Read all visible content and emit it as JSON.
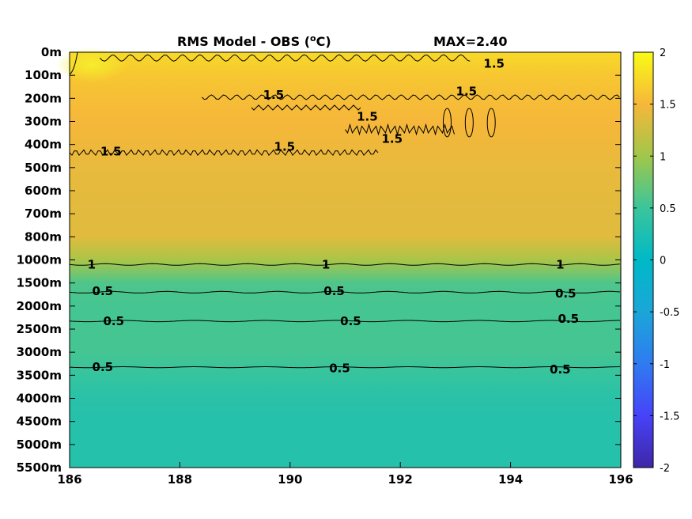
{
  "chart_data": {
    "type": "heatmap",
    "title_left": "RMS Model - OBS (",
    "title_unit_sup": "o",
    "title_unit": "C)",
    "title_right": "MAX=2.40",
    "x_ticks": [
      "186",
      "188",
      "190",
      "192",
      "194",
      "196"
    ],
    "xlim": [
      186,
      196
    ],
    "y_ticks": [
      "0m",
      "100m",
      "200m",
      "300m",
      "400m",
      "500m",
      "600m",
      "700m",
      "800m",
      "1000m",
      "1500m",
      "2000m",
      "2500m",
      "3000m",
      "3500m",
      "4000m",
      "4500m",
      "5000m",
      "5500m"
    ],
    "depth_profile": [
      {
        "depth": "0m",
        "value": 1.75
      },
      {
        "depth": "100m",
        "value": 1.62
      },
      {
        "depth": "200m",
        "value": 1.55
      },
      {
        "depth": "300m",
        "value": 1.5
      },
      {
        "depth": "400m",
        "value": 1.46
      },
      {
        "depth": "500m",
        "value": 1.42
      },
      {
        "depth": "600m",
        "value": 1.4
      },
      {
        "depth": "700m",
        "value": 1.38
      },
      {
        "depth": "800m",
        "value": 1.37
      },
      {
        "depth": "1000m",
        "value": 1.05
      },
      {
        "depth": "1500m",
        "value": 0.6
      },
      {
        "depth": "2000m",
        "value": 0.55
      },
      {
        "depth": "2500m",
        "value": 0.55
      },
      {
        "depth": "3000m",
        "value": 0.55
      },
      {
        "depth": "3500m",
        "value": 0.45
      },
      {
        "depth": "4000m",
        "value": 0.35
      },
      {
        "depth": "4500m",
        "value": 0.32
      },
      {
        "depth": "5000m",
        "value": 0.32
      },
      {
        "depth": "5500m",
        "value": 0.32
      }
    ],
    "colorbar": {
      "range": [
        -2,
        2
      ],
      "ticks": [
        "2",
        "1.5",
        "1",
        "0.5",
        "0",
        "-0.5",
        "-1",
        "-1.5",
        "-2"
      ],
      "colormap": "parula"
    },
    "contour_levels": [
      "1.5",
      "1",
      "0.5"
    ],
    "contour_labels": [
      {
        "text": "1.5",
        "x": 186.75,
        "depth_index": 4.3
      },
      {
        "text": "1.5",
        "x": 189.7,
        "depth_index": 1.85
      },
      {
        "text": "1.5",
        "x": 189.9,
        "depth_index": 4.1
      },
      {
        "text": "1.5",
        "x": 191.4,
        "depth_index": 2.8
      },
      {
        "text": "1.5",
        "x": 191.85,
        "depth_index": 3.75
      },
      {
        "text": "1.5",
        "x": 193.7,
        "depth_index": 0.5
      },
      {
        "text": "1.5",
        "x": 193.2,
        "depth_index": 1.7
      },
      {
        "text": "1",
        "x": 186.4,
        "depth_index": 9.2
      },
      {
        "text": "1",
        "x": 190.65,
        "depth_index": 9.2
      },
      {
        "text": "1",
        "x": 194.9,
        "depth_index": 9.2
      },
      {
        "text": "0.5",
        "x": 186.6,
        "depth_index": 10.35
      },
      {
        "text": "0.5",
        "x": 190.8,
        "depth_index": 10.35
      },
      {
        "text": "0.5",
        "x": 195.0,
        "depth_index": 10.45
      },
      {
        "text": "0.5",
        "x": 186.8,
        "depth_index": 11.65
      },
      {
        "text": "0.5",
        "x": 191.1,
        "depth_index": 11.65
      },
      {
        "text": "0.5",
        "x": 195.05,
        "depth_index": 11.55
      },
      {
        "text": "0.5",
        "x": 186.6,
        "depth_index": 13.65
      },
      {
        "text": "0.5",
        "x": 190.9,
        "depth_index": 13.7
      },
      {
        "text": "0.5",
        "x": 194.9,
        "depth_index": 13.75
      }
    ],
    "grid": false
  }
}
